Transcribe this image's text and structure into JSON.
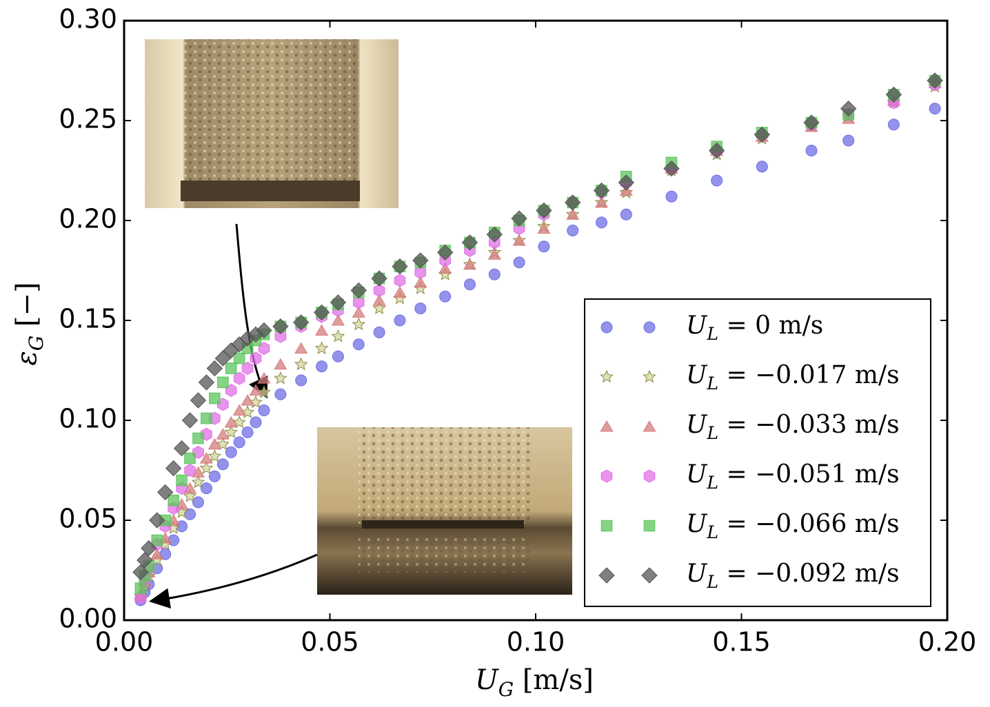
{
  "chart_data": {
    "type": "scatter",
    "x_label": "UG [m/s]",
    "y_label": "εG [−]",
    "xlim": [
      0,
      0.2
    ],
    "ylim": [
      0,
      0.3
    ],
    "xticks": [
      {
        "value": 0,
        "label": "0.00"
      },
      0.05,
      {
        "value": 0.1,
        "label": "0.10"
      },
      0.15,
      {
        "value": 0.2,
        "label": "0.20"
      }
    ],
    "yticks": [
      {
        "value": 0,
        "label": "0.00"
      },
      0.05,
      {
        "value": 0.1,
        "label": "0.10"
      },
      0.15,
      {
        "value": 0.2,
        "label": "0.20"
      },
      0.25,
      {
        "value": 0.3,
        "label": "0.30"
      }
    ],
    "legend": "lower right",
    "x": [
      0.004,
      0.005,
      0.006,
      0.008,
      0.01,
      0.012,
      0.014,
      0.016,
      0.018,
      0.02,
      0.022,
      0.024,
      0.026,
      0.028,
      0.03,
      0.032,
      0.034,
      0.038,
      0.043,
      0.048,
      0.052,
      0.057,
      0.062,
      0.067,
      0.072,
      0.078,
      0.084,
      0.09,
      0.096,
      0.102,
      0.109,
      0.116,
      0.122,
      0.133,
      0.144,
      0.155,
      0.167,
      0.176,
      0.187,
      0.197
    ],
    "series": [
      {
        "name": "UL = 0 m/s",
        "color": "#6f6fe6",
        "marker": "circle",
        "values": [
          0.01,
          0.014,
          0.018,
          0.026,
          0.033,
          0.04,
          0.047,
          0.053,
          0.059,
          0.066,
          0.072,
          0.078,
          0.084,
          0.089,
          0.094,
          0.099,
          0.105,
          0.113,
          0.12,
          0.127,
          0.132,
          0.138,
          0.144,
          0.15,
          0.156,
          0.162,
          0.168,
          0.173,
          0.179,
          0.187,
          0.195,
          0.199,
          0.203,
          0.212,
          0.22,
          0.227,
          0.235,
          0.24,
          0.248,
          0.256
        ]
      },
      {
        "name": "UL = −0.017 m/s",
        "color": "#d6d6a0",
        "marker": "star",
        "values": [
          0.012,
          0.017,
          0.022,
          0.03,
          0.038,
          0.046,
          0.054,
          0.062,
          0.069,
          0.076,
          0.082,
          0.088,
          0.094,
          0.099,
          0.104,
          0.109,
          0.114,
          0.121,
          0.128,
          0.136,
          0.142,
          0.148,
          0.156,
          0.161,
          0.166,
          0.173,
          0.178,
          0.184,
          0.19,
          0.197,
          0.203,
          0.209,
          0.214,
          0.225,
          0.233,
          0.241,
          0.247,
          0.252,
          0.259,
          0.267
        ]
      },
      {
        "name": "UL = −0.033 m/s",
        "color": "#d47c7c",
        "marker": "triangle",
        "values": [
          0.013,
          0.019,
          0.024,
          0.033,
          0.041,
          0.05,
          0.058,
          0.066,
          0.074,
          0.081,
          0.088,
          0.093,
          0.099,
          0.105,
          0.11,
          0.115,
          0.121,
          0.128,
          0.136,
          0.145,
          0.15,
          0.154,
          0.16,
          0.164,
          0.169,
          0.176,
          0.178,
          0.183,
          0.19,
          0.196,
          0.203,
          0.209,
          0.215,
          0.226,
          0.235,
          0.242,
          0.247,
          0.251,
          0.26,
          0.269
        ]
      },
      {
        "name": "UL = −0.051 m/s",
        "color": "#e070e6",
        "marker": "hexagon",
        "values": [
          0.011,
          0.02,
          0.026,
          0.038,
          0.047,
          0.056,
          0.066,
          0.075,
          0.084,
          0.093,
          0.101,
          0.108,
          0.115,
          0.121,
          0.126,
          0.131,
          0.136,
          0.142,
          0.147,
          0.152,
          0.155,
          0.159,
          0.165,
          0.17,
          0.174,
          0.18,
          0.185,
          0.189,
          0.196,
          0.203,
          0.209,
          0.214,
          0.219,
          0.226,
          0.235,
          0.243,
          0.248,
          0.253,
          0.259,
          0.268
        ]
      },
      {
        "name": "UL = −0.066 m/s",
        "color": "#5cc45c",
        "marker": "square",
        "values": [
          0.016,
          0.022,
          0.027,
          0.04,
          0.05,
          0.06,
          0.07,
          0.081,
          0.091,
          0.101,
          0.111,
          0.119,
          0.126,
          0.131,
          0.136,
          0.14,
          0.143,
          0.147,
          0.149,
          0.154,
          0.158,
          0.164,
          0.171,
          0.177,
          0.179,
          0.185,
          0.189,
          0.194,
          0.2,
          0.205,
          0.209,
          0.215,
          0.222,
          0.229,
          0.237,
          0.244,
          0.249,
          0.253,
          0.263,
          0.27
        ]
      },
      {
        "name": "UL = −0.092 m/s",
        "color": "#555555",
        "marker": "diamond",
        "values": [
          0.024,
          0.03,
          0.036,
          0.05,
          0.064,
          0.076,
          0.086,
          0.1,
          0.11,
          0.119,
          0.126,
          0.131,
          0.135,
          0.138,
          0.141,
          0.143,
          0.145,
          0.147,
          0.149,
          0.154,
          0.159,
          0.165,
          0.171,
          0.177,
          0.18,
          0.184,
          0.189,
          0.193,
          0.201,
          0.205,
          0.209,
          0.215,
          0.219,
          0.226,
          0.235,
          0.243,
          0.249,
          0.256,
          0.263,
          0.27
        ]
      }
    ]
  }
}
